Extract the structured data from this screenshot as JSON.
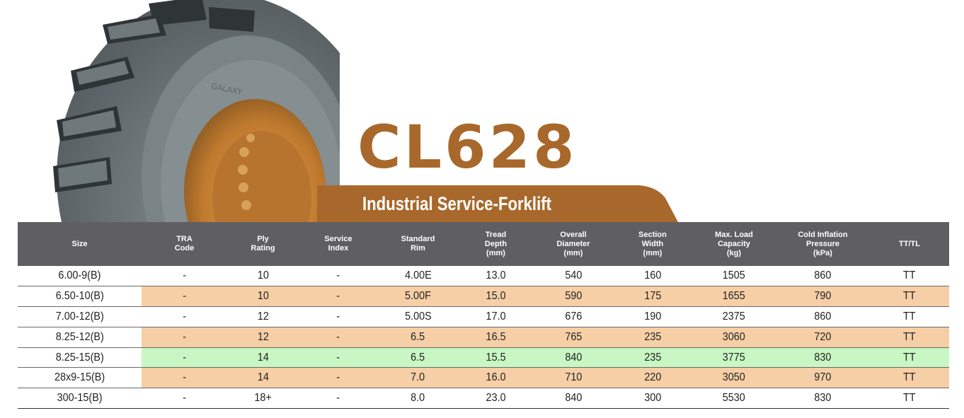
{
  "product": {
    "model": "CL628",
    "subtitle": "Industrial Service-Forklift",
    "brand_color": "#a8682b",
    "band_color": "#a8682b"
  },
  "tire_image": {
    "icon": "forklift-tire-image",
    "sidewall_text": "GALAXY"
  },
  "table": {
    "header_bg": "#5f5f62",
    "alt_row_color": "#f6cfa6",
    "highlight_row_color": "#c8f7c3",
    "columns": [
      "Size",
      "TRA\nCode",
      "Ply\nRating",
      "Service\nIndex",
      "Standard\nRim",
      "Tread\nDepth\n(mm)",
      "Overall\nDiameter\n(mm)",
      "Section\nWidth\n(mm)",
      "Max. Load\nCapacity\n(kg)",
      "Cold Inflation\nPressure\n(kPa)",
      "TT/TL"
    ],
    "rows": [
      {
        "style": "plain",
        "cells": [
          "6.00-9(B)",
          "-",
          "10",
          "-",
          "4.00E",
          "13.0",
          "540",
          "160",
          "1505",
          "860",
          "TT"
        ]
      },
      {
        "style": "alt",
        "cells": [
          "6.50-10(B)",
          "-",
          "10",
          "-",
          "5.00F",
          "15.0",
          "590",
          "175",
          "1655",
          "790",
          "TT"
        ]
      },
      {
        "style": "plain",
        "cells": [
          "7.00-12(B)",
          "-",
          "12",
          "-",
          "5.00S",
          "17.0",
          "676",
          "190",
          "2375",
          "860",
          "TT"
        ]
      },
      {
        "style": "alt",
        "cells": [
          "8.25-12(B)",
          "-",
          "12",
          "-",
          "6.5",
          "16.5",
          "765",
          "235",
          "3060",
          "720",
          "TT"
        ]
      },
      {
        "style": "hl",
        "cells": [
          "8.25-15(B)",
          "-",
          "14",
          "-",
          "6.5",
          "15.5",
          "840",
          "235",
          "3775",
          "830",
          "TT"
        ]
      },
      {
        "style": "alt",
        "cells": [
          "28x9-15(B)",
          "-",
          "14",
          "-",
          "7.0",
          "16.0",
          "710",
          "220",
          "3050",
          "970",
          "TT"
        ]
      },
      {
        "style": "plain",
        "cells": [
          "300-15(B)",
          "-",
          "18+",
          "-",
          "8.0",
          "23.0",
          "840",
          "300",
          "5530",
          "830",
          "TT"
        ]
      }
    ]
  }
}
